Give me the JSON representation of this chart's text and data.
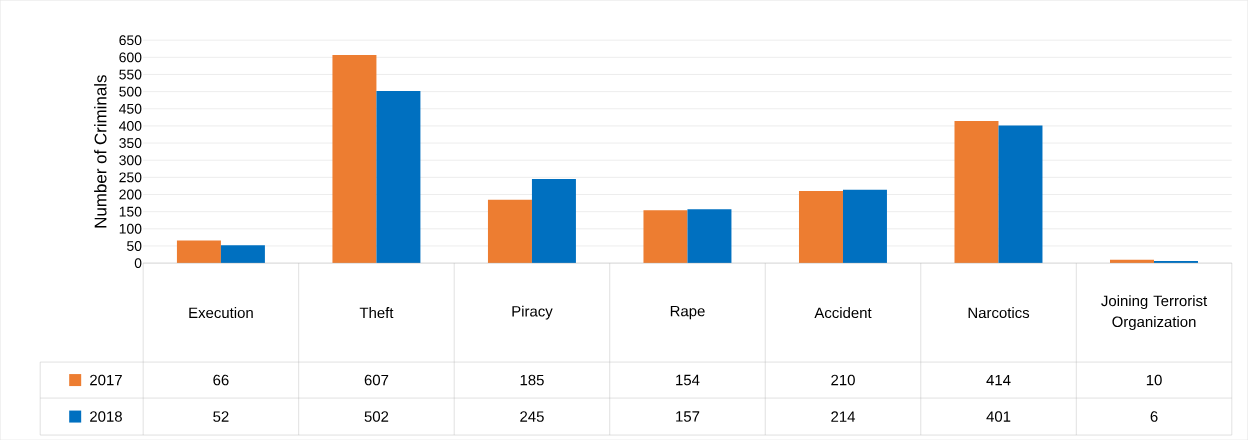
{
  "chart_data": {
    "type": "bar",
    "ylabel": "Number of Criminals",
    "categories": [
      "Execution",
      "Theft",
      "Piracy",
      "Rape",
      "Accident",
      "Narcotics",
      "Joining Terrorist Organization"
    ],
    "series": [
      {
        "name": "2017",
        "color": "#ed7d31",
        "values": [
          66,
          607,
          185,
          154,
          210,
          414,
          10
        ]
      },
      {
        "name": "2018",
        "color": "#0070c0",
        "values": [
          52,
          502,
          245,
          157,
          214,
          401,
          6
        ]
      }
    ],
    "ylim": [
      0,
      650
    ],
    "yticks": [
      0,
      50,
      100,
      150,
      200,
      250,
      300,
      350,
      400,
      450,
      500,
      550,
      600,
      650
    ],
    "grid": "y",
    "legend": "bottom",
    "data_labels": true
  }
}
